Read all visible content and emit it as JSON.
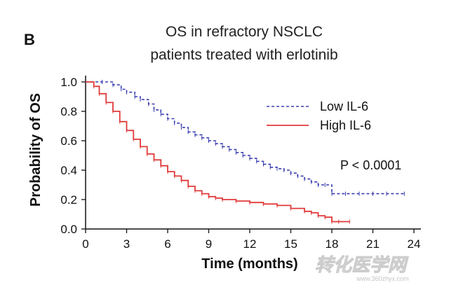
{
  "panel_label": "B",
  "chart_data": {
    "type": "line",
    "title_lines": [
      "OS in refractory NSCLC",
      "patients treated with erlotinib"
    ],
    "xlabel": "Time (months)",
    "ylabel": "Probability of OS",
    "xlim": [
      0,
      24
    ],
    "ylim": [
      0,
      1
    ],
    "xticks": [
      "0",
      "3",
      "6",
      "9",
      "12",
      "15",
      "18",
      "21",
      "24"
    ],
    "xtick_values": [
      0,
      3,
      6,
      9,
      12,
      15,
      18,
      21,
      24
    ],
    "yticks": [
      "0.0",
      "0.2",
      "0.4",
      "0.6",
      "0.8",
      "1.0"
    ],
    "ytick_values": [
      0,
      0.2,
      0.4,
      0.6,
      0.8,
      1.0
    ],
    "grid": false,
    "legend_position": "top-right",
    "annotation": "P < 0.0001",
    "series": [
      {
        "name": "Low IL-6",
        "color": "#3b3fb0",
        "style": "dashed",
        "x": [
          0,
          1.2,
          2,
          2.6,
          3,
          3.6,
          4,
          4.6,
          5,
          5.5,
          6,
          6.5,
          7,
          7.5,
          8,
          8.5,
          9,
          9.5,
          10,
          10.5,
          11,
          11.5,
          12,
          12.5,
          13,
          13.5,
          14,
          14.5,
          15,
          15.5,
          16,
          16.5,
          17,
          17.5,
          18,
          19,
          20,
          21,
          22,
          23.3
        ],
        "y": [
          1.0,
          1.0,
          0.98,
          0.95,
          0.93,
          0.9,
          0.88,
          0.85,
          0.81,
          0.78,
          0.75,
          0.72,
          0.69,
          0.66,
          0.64,
          0.62,
          0.6,
          0.58,
          0.56,
          0.54,
          0.52,
          0.5,
          0.48,
          0.46,
          0.44,
          0.42,
          0.41,
          0.4,
          0.38,
          0.36,
          0.34,
          0.32,
          0.3,
          0.3,
          0.24,
          0.24,
          0.24,
          0.24,
          0.24,
          0.24
        ]
      },
      {
        "name": "High IL-6",
        "color": "#e03a3a",
        "style": "solid",
        "x": [
          0,
          0.6,
          1,
          1.5,
          2,
          2.5,
          3,
          3.5,
          4,
          4.5,
          5,
          5.5,
          6,
          6.5,
          7,
          7.5,
          8,
          8.5,
          9,
          9.5,
          10,
          11,
          12,
          13,
          14,
          15,
          16,
          16.5,
          17,
          17.5,
          18,
          18.5,
          19.3
        ],
        "y": [
          1.0,
          0.97,
          0.92,
          0.86,
          0.8,
          0.73,
          0.67,
          0.61,
          0.56,
          0.51,
          0.47,
          0.43,
          0.39,
          0.36,
          0.33,
          0.29,
          0.26,
          0.24,
          0.22,
          0.21,
          0.2,
          0.19,
          0.18,
          0.17,
          0.16,
          0.14,
          0.12,
          0.11,
          0.09,
          0.08,
          0.05,
          0.05,
          0.05
        ]
      }
    ]
  },
  "watermark": {
    "text": "转化医学网",
    "subtext": "www.360zhyx.com"
  }
}
